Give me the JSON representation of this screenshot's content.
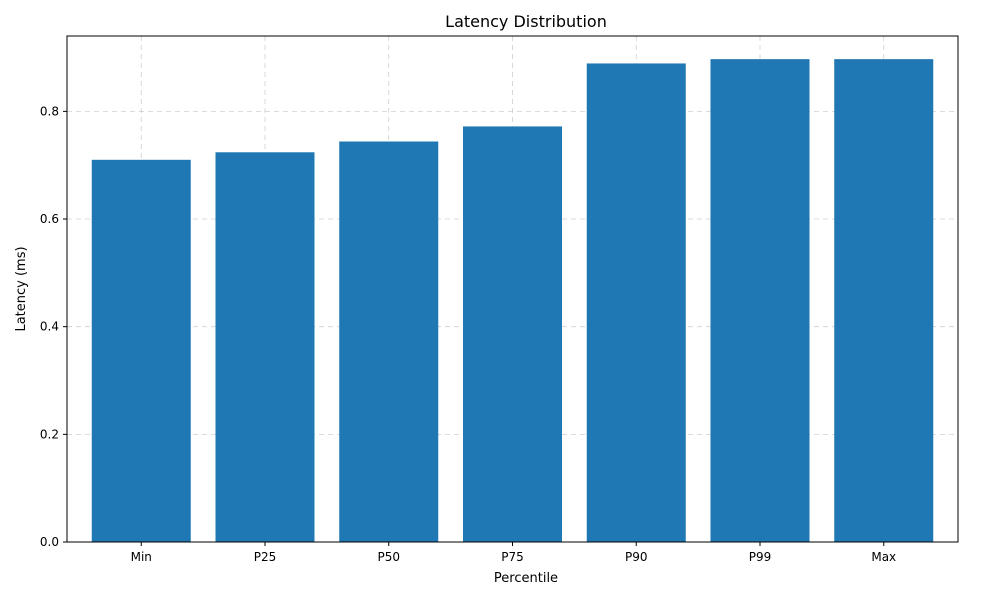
{
  "chart_data": {
    "type": "bar",
    "title": "Latency Distribution",
    "xlabel": "Percentile",
    "ylabel": "Latency (ms)",
    "categories": [
      "Min",
      "P25",
      "P50",
      "P75",
      "P90",
      "P99",
      "Max"
    ],
    "values": [
      0.71,
      0.724,
      0.744,
      0.772,
      0.889,
      0.897,
      0.897
    ],
    "ylim": [
      0,
      0.94
    ],
    "yticks": [
      "0.0",
      "0.2",
      "0.4",
      "0.6",
      "0.8"
    ],
    "grid": true,
    "bar_color": "#1f77b4"
  }
}
